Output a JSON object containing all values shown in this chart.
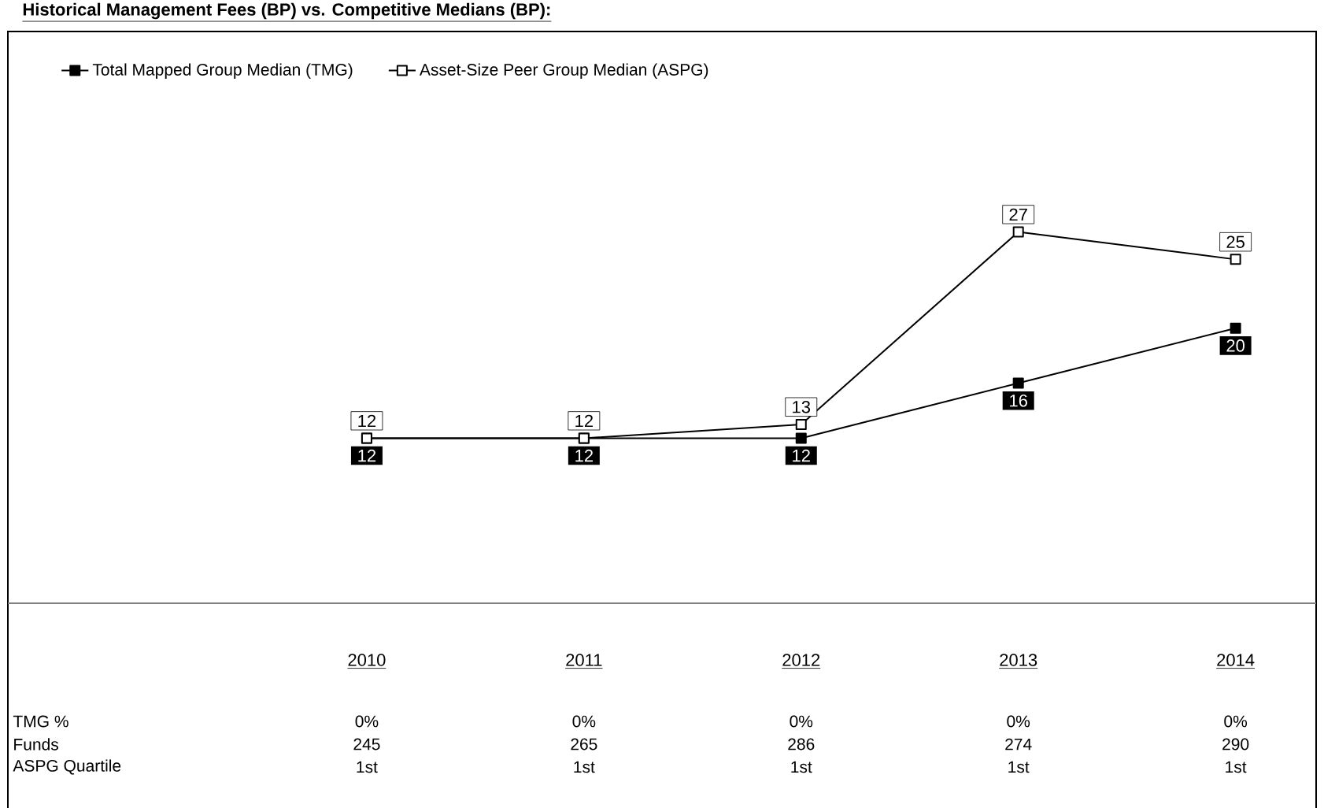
{
  "chart_data": {
    "type": "line",
    "title": "Historical Management Fees (BP) vs. Competitive Medians (BP):",
    "categories": [
      "2010",
      "2011",
      "2012",
      "2013",
      "2014"
    ],
    "series": [
      {
        "name": "Total Mapped Group Median (TMG)",
        "color": "#000000",
        "values": [
          12,
          12,
          12,
          16,
          20
        ]
      },
      {
        "name": "Asset-Size Peer Group Median (ASPG)",
        "color": "#000000",
        "values": [
          12,
          12,
          13,
          27,
          25
        ]
      }
    ],
    "data_labels": true,
    "marker": "square",
    "legend": "top left",
    "annotations": [
      "TMG %",
      "0%",
      "0%",
      "0%",
      "0%",
      "0%",
      "Funds",
      "245",
      "265",
      "286",
      "274",
      "290",
      "ASPG Quartile",
      "1st",
      "1st",
      "1st",
      "1st",
      "1st"
    ]
  }
}
